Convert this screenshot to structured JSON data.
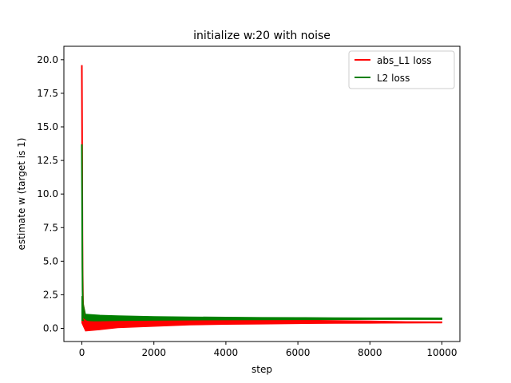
{
  "chart_data": {
    "type": "line",
    "title": "initialize w:20 with noise",
    "xlabel": "step",
    "ylabel": "estimate w (target is 1)",
    "xlim": [
      -500,
      10500
    ],
    "ylim": [
      -0.98,
      21.0
    ],
    "x_ticks": [
      0,
      2000,
      4000,
      6000,
      8000,
      10000
    ],
    "y_ticks": [
      0.0,
      2.5,
      5.0,
      7.5,
      10.0,
      12.5,
      15.0,
      17.5,
      20.0
    ],
    "x_tick_labels": [
      "0",
      "2000",
      "4000",
      "6000",
      "8000",
      "10000"
    ],
    "y_tick_labels": [
      "0.0",
      "2.5",
      "5.0",
      "7.5",
      "10.0",
      "12.5",
      "15.0",
      "17.5",
      "20.0"
    ],
    "grid": false,
    "legend_position": "top-right",
    "series": [
      {
        "name": "abs_L1 loss",
        "color": "#ff0000",
        "x": [
          0,
          5,
          10,
          15,
          20,
          30,
          40,
          50,
          60,
          80,
          100,
          150,
          200,
          300,
          500,
          800,
          1000,
          1500,
          2000,
          3000,
          4000,
          5000,
          6000,
          7000,
          8000,
          9000,
          10000
        ],
        "y": [
          19.6,
          15.0,
          10.5,
          7.0,
          4.5,
          2.2,
          1.2,
          0.9,
          0.7,
          0.6,
          0.55,
          0.5,
          0.48,
          0.46,
          0.45,
          0.45,
          0.44,
          0.44,
          0.43,
          0.43,
          0.43,
          0.43,
          0.43,
          0.43,
          0.43,
          0.43,
          0.43
        ],
        "band_x": [
          0,
          100,
          500,
          1000,
          2000,
          3000,
          4000,
          5000,
          6000,
          7000,
          8000,
          9000,
          10000
        ],
        "band_low": [
          0.4,
          -0.2,
          -0.1,
          0.05,
          0.15,
          0.25,
          0.3,
          0.32,
          0.35,
          0.37,
          0.38,
          0.4,
          0.42
        ],
        "band_high": [
          2.2,
          1.0,
          0.9,
          0.85,
          0.8,
          0.75,
          0.7,
          0.66,
          0.62,
          0.58,
          0.55,
          0.5,
          0.48
        ]
      },
      {
        "name": "L2 loss",
        "color": "#008000",
        "x": [
          0,
          5,
          10,
          15,
          20,
          30,
          40,
          50,
          60,
          80,
          100,
          150,
          200,
          300,
          500,
          800,
          1000,
          1500,
          2000,
          3000,
          4000,
          5000,
          6000,
          7000,
          8000,
          9000,
          10000
        ],
        "y": [
          13.7,
          10.0,
          7.0,
          4.5,
          2.8,
          1.5,
          1.0,
          0.85,
          0.78,
          0.75,
          0.74,
          0.73,
          0.72,
          0.72,
          0.72,
          0.72,
          0.72,
          0.72,
          0.72,
          0.72,
          0.72,
          0.72,
          0.72,
          0.72,
          0.72,
          0.72,
          0.72
        ],
        "band_x": [
          0,
          100,
          500,
          1000,
          2000,
          3000,
          4000,
          5000,
          6000,
          7000,
          8000,
          9000,
          10000
        ],
        "band_low": [
          0.6,
          0.55,
          0.55,
          0.58,
          0.6,
          0.62,
          0.63,
          0.64,
          0.65,
          0.65,
          0.66,
          0.66,
          0.66
        ],
        "band_high": [
          2.4,
          1.05,
          0.98,
          0.93,
          0.88,
          0.85,
          0.83,
          0.81,
          0.8,
          0.79,
          0.78,
          0.78,
          0.77
        ]
      }
    ]
  }
}
